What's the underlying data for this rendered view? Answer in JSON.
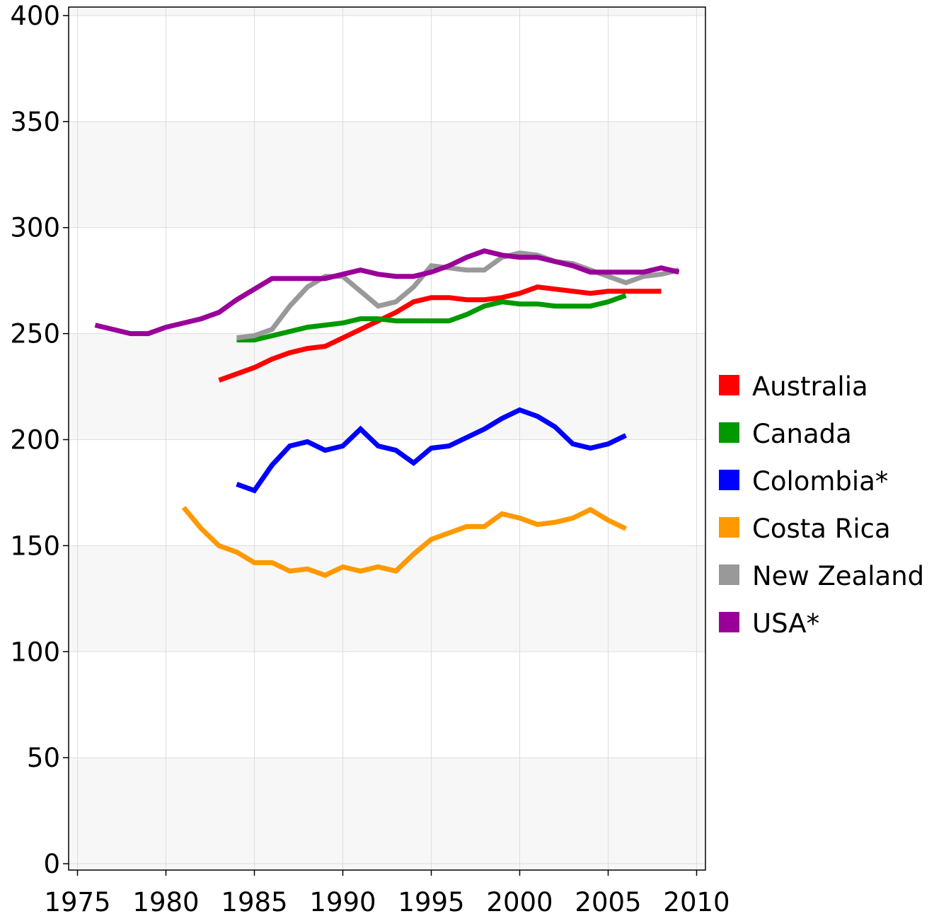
{
  "chart_data": {
    "type": "line",
    "title": "",
    "xlabel": "",
    "ylabel": "",
    "xlim": [
      1974.5,
      2010.5
    ],
    "ylim": [
      -3,
      404
    ],
    "x_ticks": [
      1975,
      1980,
      1985,
      1990,
      1995,
      2000,
      2005,
      2010
    ],
    "x_tick_labels": [
      "1975",
      "1980",
      "1985",
      "1990",
      "1995",
      "2000",
      "2005",
      "2010"
    ],
    "y_ticks": [
      0,
      50,
      100,
      150,
      200,
      250,
      300,
      350,
      400
    ],
    "y_tick_labels": [
      "0",
      "50",
      "100",
      "150",
      "200",
      "250",
      "300",
      "350",
      "400"
    ],
    "grid": true,
    "background_bands": true,
    "legend_position": "right",
    "colors": {
      "band_light": "#f7f7f7",
      "band_white": "#ffffff",
      "grid": "#dddddd",
      "axis": "#000000"
    },
    "series": [
      {
        "name": "Australia",
        "color": "#ff0000",
        "x": [
          1983,
          1984,
          1985,
          1986,
          1987,
          1988,
          1989,
          1990,
          1991,
          1992,
          1993,
          1994,
          1995,
          1996,
          1997,
          1998,
          1999,
          2000,
          2001,
          2002,
          2003,
          2004,
          2005,
          2006,
          2007,
          2008
        ],
        "y": [
          228,
          231,
          234,
          238,
          241,
          243,
          244,
          248,
          252,
          256,
          260,
          265,
          267,
          267,
          266,
          266,
          267,
          269,
          272,
          271,
          270,
          269,
          270,
          270,
          270,
          270
        ]
      },
      {
        "name": "Canada",
        "color": "#009900",
        "x": [
          1984,
          1985,
          1986,
          1987,
          1988,
          1989,
          1990,
          1991,
          1992,
          1993,
          1994,
          1995,
          1996,
          1997,
          1998,
          1999,
          2000,
          2001,
          2002,
          2003,
          2004,
          2005,
          2006
        ],
        "y": [
          247,
          247,
          249,
          251,
          253,
          254,
          255,
          257,
          257,
          256,
          256,
          256,
          256,
          259,
          263,
          265,
          264,
          264,
          263,
          263,
          263,
          265,
          268
        ]
      },
      {
        "name": "Colombia*",
        "color": "#0000ff",
        "x": [
          1984,
          1985,
          1986,
          1987,
          1988,
          1989,
          1990,
          1991,
          1992,
          1993,
          1994,
          1995,
          1996,
          1997,
          1998,
          1999,
          2000,
          2001,
          2002,
          2003,
          2004,
          2005,
          2006
        ],
        "y": [
          179,
          176,
          188,
          197,
          199,
          195,
          197,
          205,
          197,
          195,
          189,
          196,
          197,
          201,
          205,
          210,
          214,
          211,
          206,
          198,
          196,
          198,
          202
        ]
      },
      {
        "name": "Costa Rica",
        "color": "#ff9900",
        "x": [
          1981,
          1982,
          1983,
          1984,
          1985,
          1986,
          1987,
          1988,
          1989,
          1990,
          1991,
          1992,
          1993,
          1994,
          1995,
          1996,
          1997,
          1998,
          1999,
          2000,
          2001,
          2002,
          2003,
          2004,
          2005,
          2006
        ],
        "y": [
          168,
          158,
          150,
          147,
          142,
          142,
          138,
          139,
          136,
          140,
          138,
          140,
          138,
          146,
          153,
          156,
          159,
          159,
          165,
          163,
          160,
          161,
          163,
          167,
          162,
          158
        ]
      },
      {
        "name": "New Zealand",
        "color": "#999999",
        "x": [
          1984,
          1985,
          1986,
          1987,
          1988,
          1989,
          1990,
          1991,
          1992,
          1993,
          1994,
          1995,
          1996,
          1997,
          1998,
          1999,
          2000,
          2001,
          2002,
          2003,
          2004,
          2005,
          2006,
          2007,
          2008,
          2009
        ],
        "y": [
          248,
          249,
          252,
          263,
          272,
          277,
          277,
          270,
          263,
          265,
          272,
          282,
          281,
          280,
          280,
          286,
          288,
          287,
          284,
          283,
          280,
          277,
          274,
          277,
          278,
          280
        ]
      },
      {
        "name": "USA*",
        "color": "#990099",
        "x": [
          1976,
          1977,
          1978,
          1979,
          1980,
          1981,
          1982,
          1983,
          1984,
          1985,
          1986,
          1987,
          1988,
          1989,
          1990,
          1991,
          1992,
          1993,
          1994,
          1995,
          1996,
          1997,
          1998,
          1999,
          2000,
          2001,
          2002,
          2003,
          2004,
          2005,
          2006,
          2007,
          2008,
          2009
        ],
        "y": [
          254,
          252,
          250,
          250,
          253,
          255,
          257,
          260,
          266,
          271,
          276,
          276,
          276,
          276,
          278,
          280,
          278,
          277,
          277,
          279,
          282,
          286,
          289,
          287,
          286,
          286,
          284,
          282,
          279,
          279,
          279,
          279,
          281,
          279
        ]
      }
    ]
  }
}
